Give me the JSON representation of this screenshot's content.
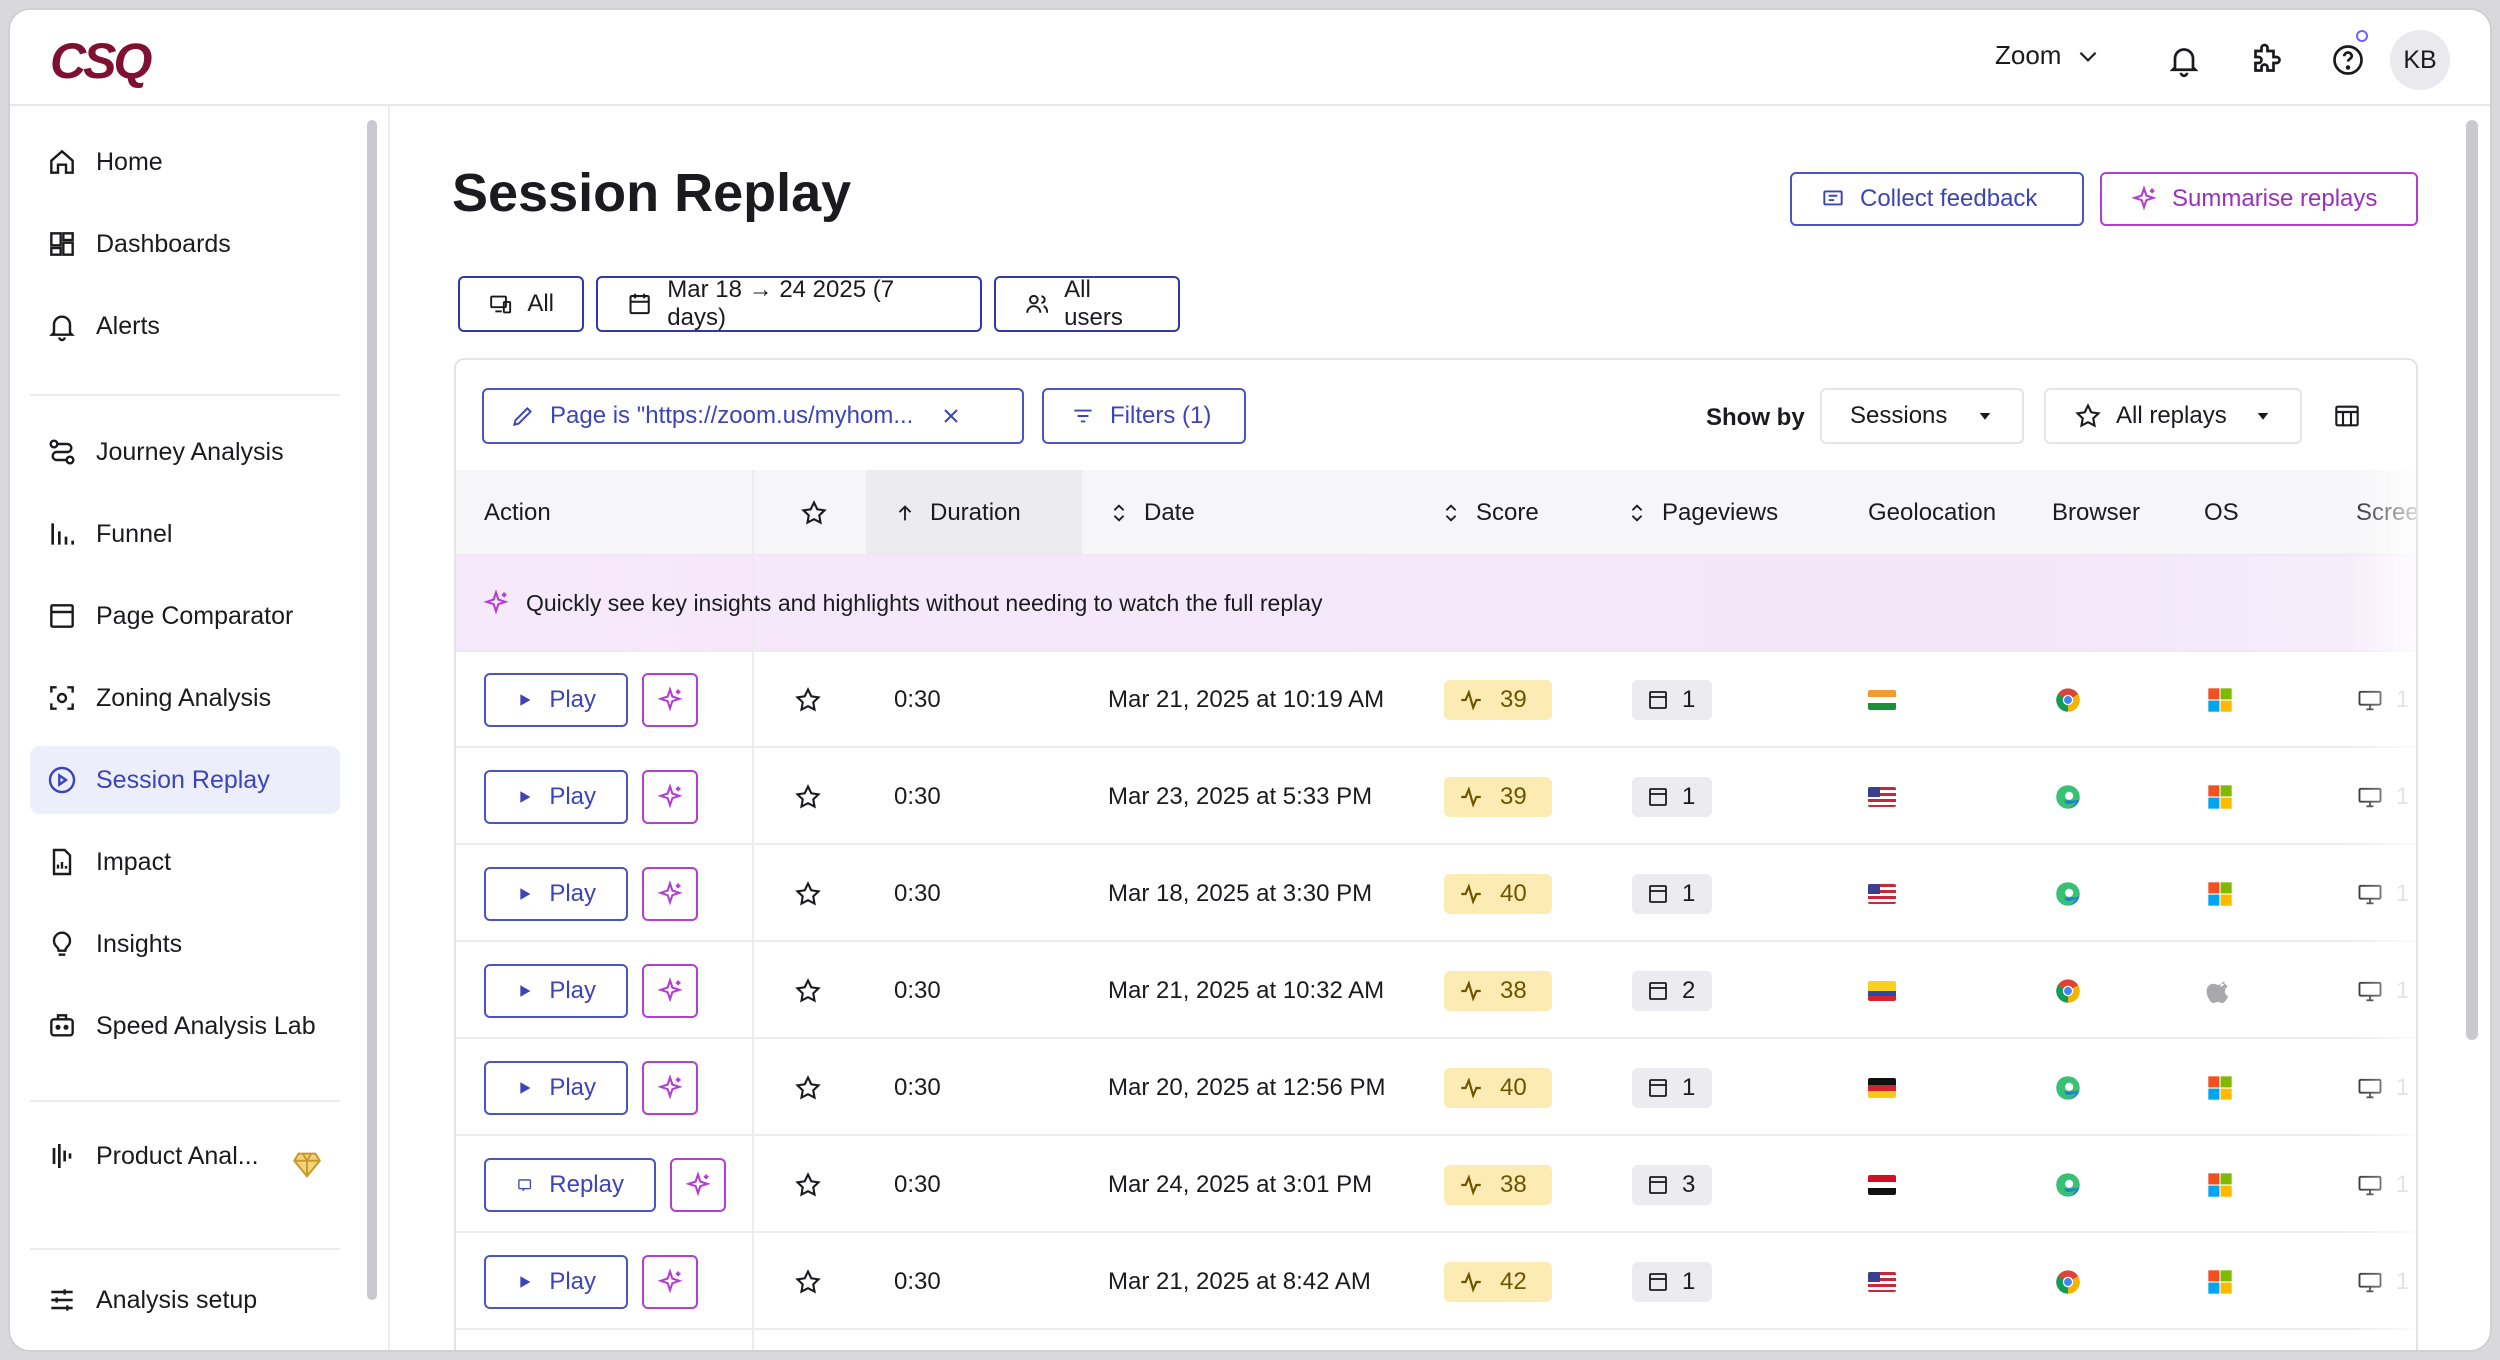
{
  "app": {
    "logo_text": "CSQ"
  },
  "topbar": {
    "workspace": "Zoom",
    "avatar_initials": "KB"
  },
  "sidebar": {
    "items": [
      {
        "label": "Home",
        "icon": "home-icon"
      },
      {
        "label": "Dashboards",
        "icon": "dashboard-icon"
      },
      {
        "label": "Alerts",
        "icon": "bell-icon"
      },
      {
        "label": "Journey Analysis",
        "icon": "journey-icon"
      },
      {
        "label": "Funnel",
        "icon": "funnel-icon"
      },
      {
        "label": "Page Comparator",
        "icon": "page-comparator-icon"
      },
      {
        "label": "Zoning Analysis",
        "icon": "zoning-icon"
      },
      {
        "label": "Session Replay",
        "icon": "play-circle-icon",
        "active": true
      },
      {
        "label": "Impact",
        "icon": "impact-icon"
      },
      {
        "label": "Insights",
        "icon": "lightbulb-icon"
      },
      {
        "label": "Speed Analysis Lab",
        "icon": "speed-lab-icon"
      },
      {
        "label": "Product Anal...",
        "icon": "product-analytics-icon"
      },
      {
        "label": "Analysis setup",
        "icon": "sliders-icon"
      }
    ]
  },
  "page": {
    "title": "Session Replay",
    "collect_feedback": "Collect feedback",
    "summarise_replays": "Summarise replays"
  },
  "chips": {
    "device": "All",
    "date_range": "Mar 18 → 24 2025 (7 days)",
    "users": "All users"
  },
  "filterbar": {
    "page_filter": "Page is \"https://zoom.us/myhom...",
    "filters": "Filters (1)",
    "show_by_label": "Show by",
    "show_by_value": "Sessions",
    "replays_value": "All replays"
  },
  "table": {
    "columns": {
      "action": "Action",
      "duration": "Duration",
      "date": "Date",
      "score": "Score",
      "pageviews": "Pageviews",
      "geolocation": "Geolocation",
      "browser": "Browser",
      "os": "OS",
      "screen": "Scree"
    },
    "banner": "Quickly see key insights and highlights without needing to watch the full replay",
    "rows": [
      {
        "action": "Play",
        "duration": "0:30",
        "date": "Mar 21, 2025 at 10:19 AM",
        "score": "39",
        "pageviews": "1",
        "flag": "india",
        "browser": "chrome",
        "os": "windows",
        "screen": "1"
      },
      {
        "action": "Play",
        "duration": "0:30",
        "date": "Mar 23, 2025 at 5:33 PM",
        "score": "39",
        "pageviews": "1",
        "flag": "usa",
        "browser": "edge",
        "os": "windows",
        "screen": "1"
      },
      {
        "action": "Play",
        "duration": "0:30",
        "date": "Mar 18, 2025 at 3:30 PM",
        "score": "40",
        "pageviews": "1",
        "flag": "usa",
        "browser": "edge",
        "os": "windows",
        "screen": "1"
      },
      {
        "action": "Play",
        "duration": "0:30",
        "date": "Mar 21, 2025 at 10:32 AM",
        "score": "38",
        "pageviews": "2",
        "flag": "colombia",
        "browser": "chrome",
        "os": "apple",
        "screen": "1"
      },
      {
        "action": "Play",
        "duration": "0:30",
        "date": "Mar 20, 2025 at 12:56 PM",
        "score": "40",
        "pageviews": "1",
        "flag": "germany",
        "browser": "edge",
        "os": "windows",
        "screen": "1"
      },
      {
        "action": "Replay",
        "duration": "0:30",
        "date": "Mar 24, 2025 at 3:01 PM",
        "score": "38",
        "pageviews": "3",
        "flag": "egypt",
        "browser": "edge",
        "os": "windows",
        "screen": "1"
      },
      {
        "action": "Play",
        "duration": "0:30",
        "date": "Mar 21, 2025 at 8:42 AM",
        "score": "42",
        "pageviews": "1",
        "flag": "usa",
        "browser": "chrome",
        "os": "windows",
        "screen": "1"
      }
    ]
  },
  "colors": {
    "brand": "#7e1032",
    "accent": "#3c44b8",
    "ai_accent": "#b33fd0",
    "score_badge": "#fdebb4"
  }
}
